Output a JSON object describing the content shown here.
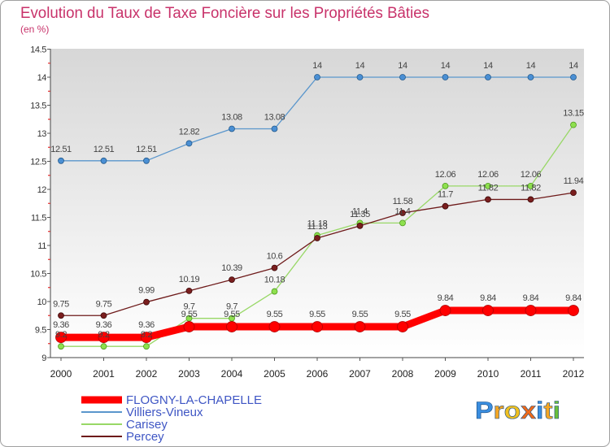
{
  "chart_data": {
    "type": "line",
    "title": "Evolution du Taux de Taxe Foncière sur les Propriétés Bâties",
    "subtitle": "(en %)",
    "title_color": "#c8326a",
    "x": [
      2000,
      2001,
      2002,
      2003,
      2004,
      2005,
      2006,
      2007,
      2008,
      2009,
      2010,
      2011,
      2012
    ],
    "ylim": [
      9,
      14.5
    ],
    "yticks": [
      9,
      9.5,
      10,
      10.5,
      11,
      11.5,
      12,
      12.5,
      13,
      13.5,
      14,
      14.5
    ],
    "grid": false,
    "legend": "bottom-left",
    "legend_text_color": "#3f56c4",
    "minor_tick_color": "#e03030",
    "series": [
      {
        "name": "FLOGNY-LA-CHAPELLE",
        "color": "#ff0000",
        "marker_color": "#ff0000",
        "marker_stroke": "#b00000",
        "values": [
          9.36,
          9.36,
          9.36,
          9.55,
          9.55,
          9.55,
          9.55,
          9.55,
          9.55,
          9.84,
          9.84,
          9.84,
          9.84
        ]
      },
      {
        "name": "Villiers-Vineux",
        "color": "#5a96cc",
        "marker_color": "#4a8fd4",
        "marker_stroke": "#245a8c",
        "values": [
          12.51,
          12.51,
          12.51,
          12.82,
          13.08,
          13.08,
          14,
          14,
          14,
          14,
          14,
          14,
          14
        ]
      },
      {
        "name": "Carisey",
        "color": "#98d866",
        "marker_color": "#8ee04e",
        "marker_stroke": "#4e9a1e",
        "values": [
          9.2,
          9.2,
          9.2,
          9.7,
          9.7,
          10.18,
          11.18,
          11.4,
          11.4,
          12.06,
          12.06,
          12.06,
          13.15
        ]
      },
      {
        "name": "Percey",
        "color": "#6e1a1a",
        "marker_color": "#7a1e1e",
        "marker_stroke": "#3e0808",
        "values": [
          9.75,
          9.75,
          9.99,
          10.19,
          10.39,
          10.6,
          11.13,
          11.35,
          11.58,
          11.7,
          11.82,
          11.82,
          11.94
        ]
      }
    ]
  },
  "logo": {
    "text": "Proxiti",
    "letter_colors": [
      "#3a8ee0",
      "#f5a623",
      "#f0c020",
      "#ee6a1a",
      "#3a8ee0",
      "#f5a623",
      "#6abf3a"
    ]
  }
}
